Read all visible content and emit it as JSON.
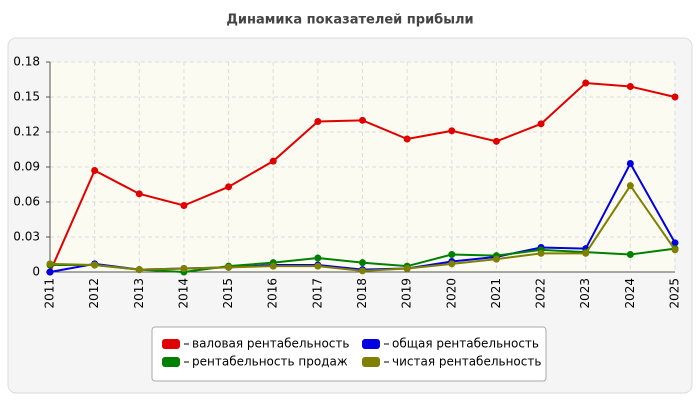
{
  "chart_data": {
    "type": "line",
    "title": "Динамика показателей прибыли",
    "categories": [
      "2011",
      "2012",
      "2013",
      "2014",
      "2015",
      "2016",
      "2017",
      "2018",
      "2019",
      "2020",
      "2021",
      "2022",
      "2023",
      "2024",
      "2025"
    ],
    "series": [
      {
        "name": "валовая рентабельность",
        "color": "#e00000",
        "values": [
          0,
          0.087,
          0.067,
          0.057,
          0.073,
          0.095,
          0.129,
          0.13,
          0.114,
          0.121,
          0.112,
          0.127,
          0.162,
          0.159,
          0.15
        ]
      },
      {
        "name": "общая рентабельность",
        "color": "#0000e0",
        "values": [
          0,
          0.007,
          0.002,
          0.003,
          0.004,
          0.006,
          0.006,
          0.002,
          0.003,
          0.009,
          0.013,
          0.021,
          0.02,
          0.093,
          0.025
        ]
      },
      {
        "name": "рентабельность продаж",
        "color": "#008000",
        "values": [
          0.006,
          0.006,
          0.002,
          0,
          0.005,
          0.008,
          0.012,
          0.008,
          0.005,
          0.015,
          0.014,
          0.019,
          0.017,
          0.015,
          0.02
        ]
      },
      {
        "name": "чистая рентабельность",
        "color": "#808000",
        "values": [
          0.007,
          0.006,
          0.002,
          0.003,
          0.004,
          0.005,
          0.005,
          0.001,
          0.003,
          0.007,
          0.011,
          0.016,
          0.016,
          0.074,
          0.019
        ]
      }
    ],
    "ylim": [
      0,
      0.18
    ],
    "yticks": [
      0,
      0.03,
      0.06,
      0.09,
      0.12,
      0.15,
      0.18
    ],
    "grid": true
  }
}
